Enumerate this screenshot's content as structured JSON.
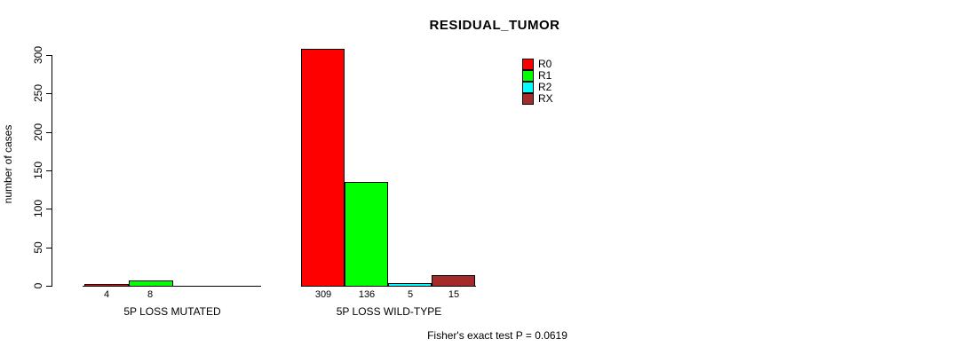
{
  "chart_data": {
    "type": "bar",
    "title": "RESIDUAL_TUMOR",
    "ylabel": "number of cases",
    "xlabel": "",
    "ylim": [
      0,
      300
    ],
    "yticks": [
      0,
      50,
      100,
      150,
      200,
      250,
      300
    ],
    "grid": false,
    "legend_position": "top-right",
    "legend": [
      {
        "name": "R0",
        "color": "#ff0000"
      },
      {
        "name": "R1",
        "color": "#00ff00"
      },
      {
        "name": "R2",
        "color": "#00ffff"
      },
      {
        "name": "RX",
        "color": "#a52a2a"
      }
    ],
    "groups": [
      {
        "label": "5P LOSS MUTATED",
        "series": [
          "R0",
          "R1",
          "R2",
          "RX"
        ],
        "values": [
          4,
          8,
          0,
          0
        ],
        "value_labels": [
          "4",
          "8",
          "",
          ""
        ]
      },
      {
        "label": "5P LOSS WILD-TYPE",
        "series": [
          "R0",
          "R1",
          "R2",
          "RX"
        ],
        "values": [
          309,
          136,
          5,
          15
        ],
        "value_labels": [
          "309",
          "136",
          "5",
          "15"
        ]
      }
    ],
    "annotation": "Fisher's exact test P = 0.0619"
  },
  "colors": {
    "axis": "#000000",
    "background": "#ffffff"
  }
}
